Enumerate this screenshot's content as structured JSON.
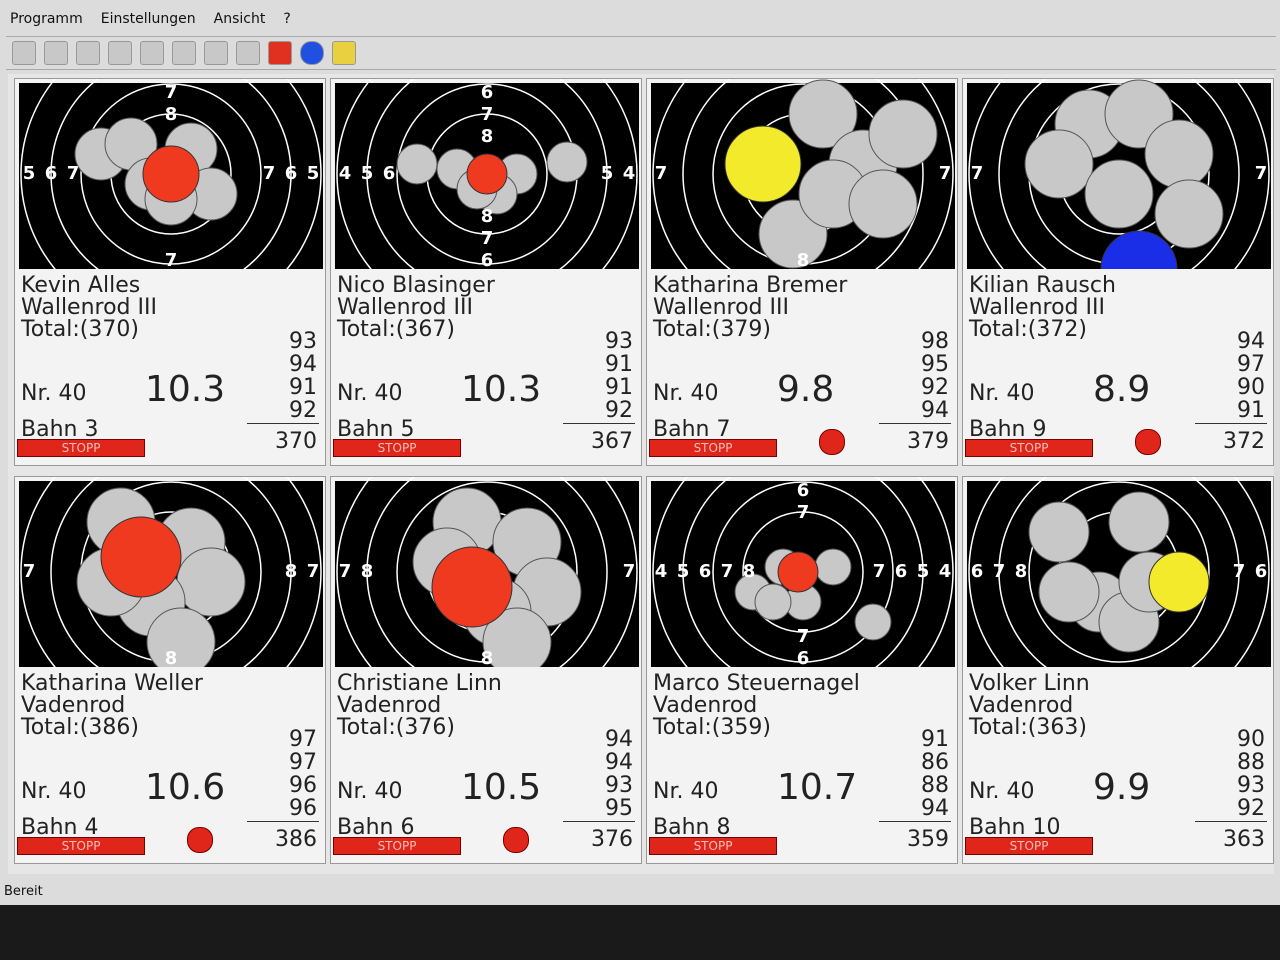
{
  "menu": [
    "Programm",
    "Einstellungen",
    "Ansicht",
    "?"
  ],
  "status": "Bereit",
  "panels": [
    {
      "name": "Kevin Alles",
      "club": "Wallenrod III",
      "total": "Total:(370)",
      "nr": "Nr. 40",
      "shot": "10.3",
      "series": [
        "93",
        "94",
        "91",
        "92"
      ],
      "sum": "370",
      "lane": "Bahn 3",
      "button": "STOPP",
      "active": false,
      "shot_color": "#f03a20",
      "rings": {
        "top": [
          "7",
          "8"
        ],
        "left": [
          "5",
          "6",
          "7"
        ],
        "right": [
          "7",
          "6",
          "5"
        ],
        "bottom": [
          "7"
        ]
      }
    },
    {
      "name": "Nico Blasinger",
      "club": "Wallenrod III",
      "total": "Total:(367)",
      "nr": "Nr. 40",
      "shot": "10.3",
      "series": [
        "93",
        "91",
        "91",
        "92"
      ],
      "sum": "367",
      "lane": "Bahn 5",
      "button": "STOPP",
      "active": false,
      "shot_color": "#f03a20",
      "rings": {
        "top": [
          "6",
          "7",
          "8"
        ],
        "left": [
          "4",
          "5",
          "6"
        ],
        "right": [
          "5",
          "4"
        ],
        "bottom": [
          "8",
          "7",
          "6"
        ]
      }
    },
    {
      "name": "Katharina Bremer",
      "club": "Wallenrod III",
      "total": "Total:(379)",
      "nr": "Nr. 40",
      "shot": "9.8",
      "series": [
        "98",
        "95",
        "92",
        "94"
      ],
      "sum": "379",
      "lane": "Bahn 7",
      "button": "STOPP",
      "active": true,
      "shot_color": "#f2ea2a",
      "rings": {
        "left": [
          "7"
        ],
        "right": [
          "7"
        ],
        "bottom": [
          "8"
        ]
      }
    },
    {
      "name": "Kilian Rausch",
      "club": "Wallenrod III",
      "total": "Total:(372)",
      "nr": "Nr. 40",
      "shot": "8.9",
      "series": [
        "94",
        "97",
        "90",
        "91"
      ],
      "sum": "372",
      "lane": "Bahn 9",
      "button": "STOPP",
      "active": true,
      "shot_color": "#1a2ee8",
      "rings": {
        "left": [
          "7"
        ],
        "right": [
          "7"
        ]
      }
    },
    {
      "name": "Katharina Weller",
      "club": "Vadenrod",
      "total": "Total:(386)",
      "nr": "Nr. 40",
      "shot": "10.6",
      "series": [
        "97",
        "97",
        "96",
        "96"
      ],
      "sum": "386",
      "lane": "Bahn 4",
      "button": "STOPP",
      "active": true,
      "shot_color": "#f03a20",
      "rings": {
        "left": [
          "7"
        ],
        "right": [
          "8",
          "7"
        ],
        "bottom": [
          "8"
        ]
      }
    },
    {
      "name": "Christiane Linn",
      "club": "Vadenrod",
      "total": "Total:(376)",
      "nr": "Nr. 40",
      "shot": "10.5",
      "series": [
        "94",
        "94",
        "93",
        "95"
      ],
      "sum": "376",
      "lane": "Bahn 6",
      "button": "STOPP",
      "active": true,
      "shot_color": "#f03a20",
      "rings": {
        "left": [
          "7",
          "8"
        ],
        "right": [
          "7"
        ],
        "bottom": [
          "8"
        ]
      }
    },
    {
      "name": "Marco Steuernagel",
      "club": "Vadenrod",
      "total": "Total:(359)",
      "nr": "Nr. 40",
      "shot": "10.7",
      "series": [
        "91",
        "86",
        "88",
        "94"
      ],
      "sum": "359",
      "lane": "Bahn 8",
      "button": "STOPP",
      "active": false,
      "shot_color": "#f03a20",
      "rings": {
        "top": [
          "6",
          "7"
        ],
        "left": [
          "4",
          "5",
          "6",
          "7",
          "8"
        ],
        "right": [
          "7",
          "6",
          "5",
          "4"
        ],
        "bottom": [
          "7",
          "6"
        ]
      }
    },
    {
      "name": "Volker Linn",
      "club": "Vadenrod",
      "total": "Total:(363)",
      "nr": "Nr. 40",
      "shot": "9.9",
      "series": [
        "90",
        "88",
        "93",
        "92"
      ],
      "sum": "363",
      "lane": "Bahn 10",
      "button": "STOPP",
      "active": false,
      "shot_color": "#f2ea2a",
      "rings": {
        "left": [
          "6",
          "7",
          "8"
        ],
        "right": [
          "7",
          "6"
        ]
      }
    }
  ]
}
